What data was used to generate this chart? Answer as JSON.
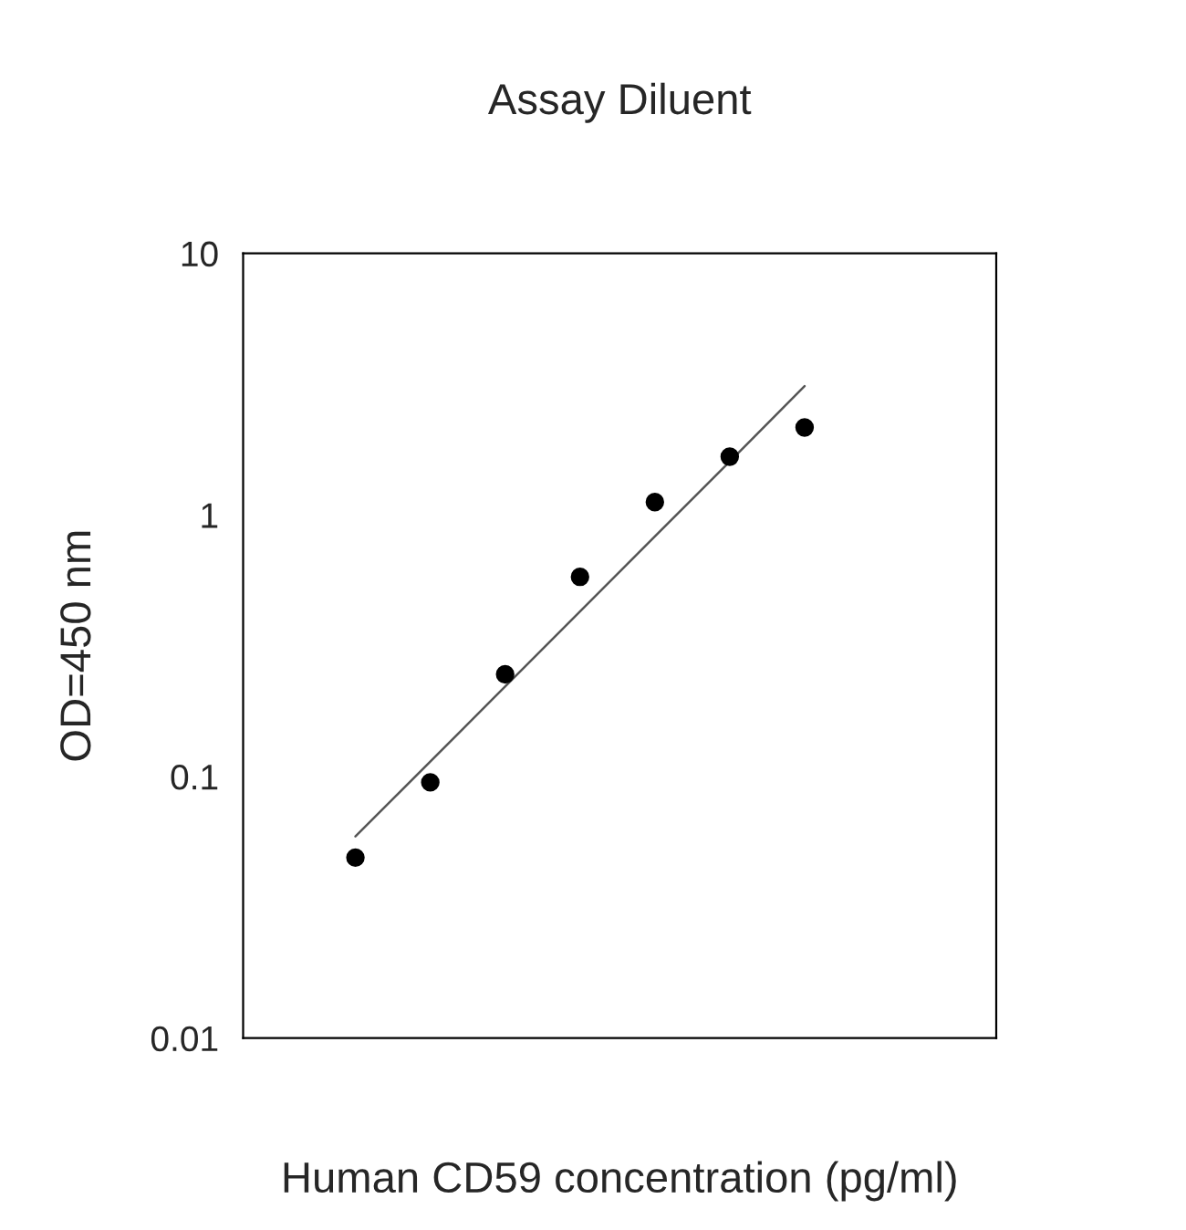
{
  "chart_data": {
    "type": "scatter",
    "title": "Assay Diluent",
    "xlabel": "Human CD59 concentration (pg/ml)",
    "ylabel": "OD=450 nm",
    "categories": [
      null,
      null,
      null,
      null,
      null,
      null,
      null
    ],
    "log": "y",
    "ylim": [
      0.01,
      10
    ],
    "yticks": [
      0.01,
      0.1,
      1,
      10
    ],
    "grid": false,
    "legend": false,
    "marker": "circle",
    "series": [
      {
        "color": "#000000",
        "values": [
          0.049,
          0.095,
          0.246,
          0.58,
          1.12,
          1.67,
          2.16
        ]
      },
      {
        "type": "line",
        "color": "#555555",
        "line_style": "solid",
        "marker": "none",
        "values": [
          0.059,
          0.114,
          0.221,
          0.428,
          0.828,
          1.6,
          3.11
        ]
      }
    ]
  }
}
